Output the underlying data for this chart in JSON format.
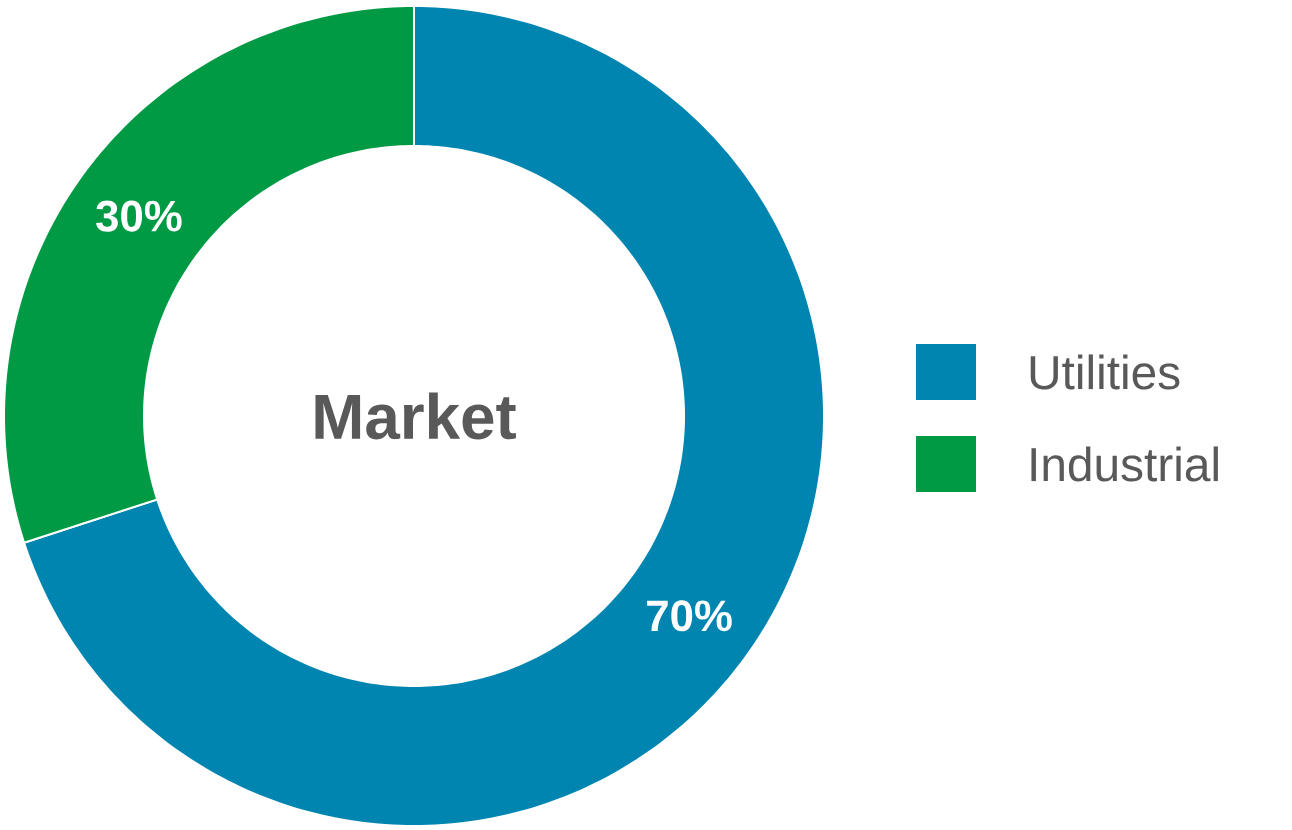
{
  "chart_data": {
    "type": "donut",
    "title": "Market",
    "categories": [
      "Utilities",
      "Industrial"
    ],
    "values": [
      70,
      30
    ],
    "colors": [
      "#0085b0",
      "#009a44"
    ],
    "value_labels": [
      "70%",
      "30%"
    ],
    "legend": "right"
  }
}
